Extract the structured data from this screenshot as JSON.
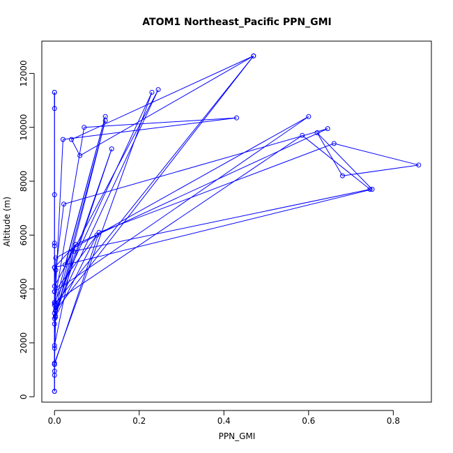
{
  "chart_data": {
    "type": "scatter",
    "title": "ATOM1 Northeast_Pacific PPN_GMI",
    "xlabel": "PPN_GMI",
    "ylabel": "Altitude (m)",
    "xlim": [
      -0.03,
      0.89
    ],
    "ylim": [
      -200,
      13200
    ],
    "xticks": [
      0,
      0.2,
      0.4,
      0.6,
      0.8
    ],
    "xtick_labels": [
      "0.0",
      "0.2",
      "0.4",
      "0.6",
      "0.8"
    ],
    "yticks": [
      0,
      2000,
      4000,
      6000,
      8000,
      10000,
      12000
    ],
    "ytick_labels": [
      "0",
      "2000",
      "4000",
      "6000",
      "8000",
      "10000",
      "12000"
    ],
    "grid": false,
    "series": [
      {
        "color": "#0000ff",
        "marker": "open-circle",
        "line": true,
        "points": [
          {
            "x": 0.0,
            "y": 200
          },
          {
            "x": 0.0,
            "y": 800
          },
          {
            "x": 0.0,
            "y": 1800
          },
          {
            "x": 0.0,
            "y": 3900
          },
          {
            "x": 0.0,
            "y": 5600
          },
          {
            "x": 0.0,
            "y": 7500
          },
          {
            "x": 0.0,
            "y": 11300
          },
          {
            "x": 0.0,
            "y": 10700
          },
          {
            "x": 0.0,
            "y": 11300
          },
          {
            "x": 0.0,
            "y": 5700
          },
          {
            "x": 0.0,
            "y": 3400
          },
          {
            "x": 0.0,
            "y": 950
          },
          {
            "x": 0.0,
            "y": 200
          },
          {
            "x": 0.0,
            "y": 1200
          },
          {
            "x": 0.003,
            "y": 3300
          },
          {
            "x": 0.12,
            "y": 10250
          },
          {
            "x": 0.002,
            "y": 2950
          },
          {
            "x": 0.0,
            "y": 1250
          },
          {
            "x": 0.23,
            "y": 11300
          },
          {
            "x": 0.0,
            "y": 3500
          },
          {
            "x": 0.0,
            "y": 4800
          },
          {
            "x": 0.75,
            "y": 7700
          },
          {
            "x": 0.62,
            "y": 9800
          },
          {
            "x": 0.68,
            "y": 8200
          },
          {
            "x": 0.86,
            "y": 8600
          },
          {
            "x": 0.66,
            "y": 9400
          },
          {
            "x": 0.105,
            "y": 6100
          },
          {
            "x": 0.0,
            "y": 1200
          },
          {
            "x": 0.0,
            "y": 2700
          },
          {
            "x": 0.002,
            "y": 3000
          },
          {
            "x": 0.05,
            "y": 5650
          },
          {
            "x": 0.025,
            "y": 4900
          },
          {
            "x": 0.12,
            "y": 10400
          },
          {
            "x": 0.001,
            "y": 3450
          },
          {
            "x": 0.47,
            "y": 12650
          },
          {
            "x": 0.04,
            "y": 9550
          },
          {
            "x": 0.06,
            "y": 8950
          },
          {
            "x": 0.47,
            "y": 12650
          },
          {
            "x": 0.002,
            "y": 3200
          },
          {
            "x": 0.245,
            "y": 11400
          },
          {
            "x": 0.0,
            "y": 4100
          },
          {
            "x": 0.003,
            "y": 5150
          },
          {
            "x": 0.6,
            "y": 10400
          },
          {
            "x": 0.0,
            "y": 3900
          },
          {
            "x": 0.1,
            "y": 6000
          },
          {
            "x": 0.0,
            "y": 2900
          },
          {
            "x": 0.135,
            "y": 9200
          },
          {
            "x": 0.0,
            "y": 3100
          },
          {
            "x": 0.02,
            "y": 9550
          },
          {
            "x": 0.43,
            "y": 10350
          },
          {
            "x": 0.07,
            "y": 10000
          },
          {
            "x": 0.0,
            "y": 3500
          },
          {
            "x": 0.585,
            "y": 9700
          },
          {
            "x": 0.745,
            "y": 7700
          },
          {
            "x": 0.045,
            "y": 5400
          },
          {
            "x": 0.0,
            "y": 1900
          },
          {
            "x": 0.003,
            "y": 4700
          },
          {
            "x": 0.022,
            "y": 7150
          },
          {
            "x": 0.645,
            "y": 9950
          },
          {
            "x": 0.05,
            "y": 5650
          },
          {
            "x": 0.0,
            "y": 4800
          }
        ]
      }
    ]
  }
}
